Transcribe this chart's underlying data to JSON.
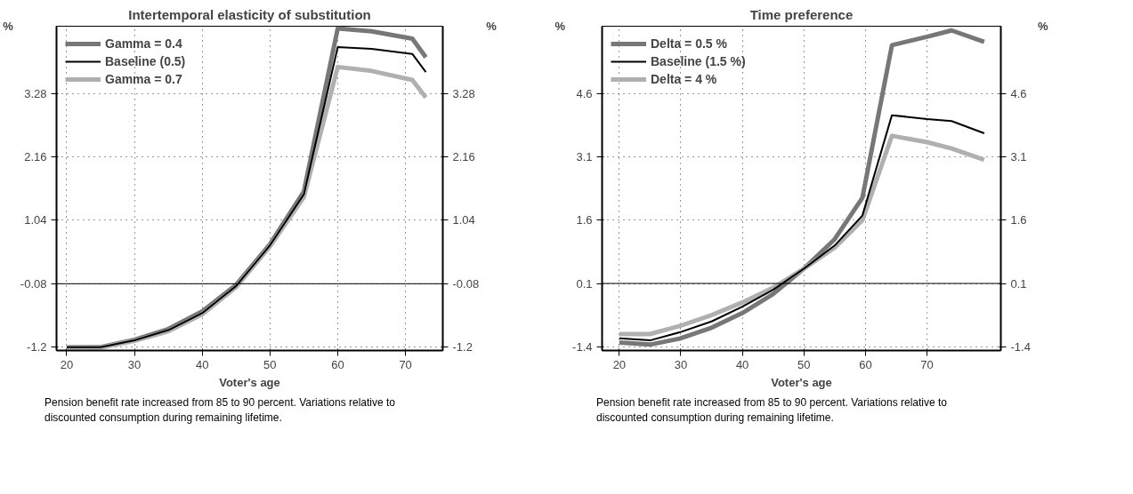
{
  "chart_data": [
    {
      "type": "line",
      "title": "Intertemporal elasticity of substitution",
      "xlabel": "Voter's age",
      "ylabel": "%",
      "y2label": "%",
      "x": [
        20,
        25,
        30,
        35,
        40,
        45,
        50,
        55,
        60,
        65,
        71,
        73
      ],
      "series": [
        {
          "name": "Gamma = 0.4",
          "color": "#777777",
          "values": [
            -1.2,
            -1.2,
            -1.07,
            -0.88,
            -0.57,
            -0.1,
            0.62,
            1.55,
            4.43,
            4.38,
            4.25,
            3.92
          ]
        },
        {
          "name": "Baseline (0.5)",
          "color": "#000000",
          "values": [
            -1.2,
            -1.2,
            -1.08,
            -0.9,
            -0.6,
            -0.12,
            0.6,
            1.5,
            4.1,
            4.07,
            3.98,
            3.66
          ]
        },
        {
          "name": "Gamma = 0.7",
          "color": "#b0b0b0",
          "values": [
            -1.2,
            -1.21,
            -1.09,
            -0.92,
            -0.62,
            -0.14,
            0.58,
            1.45,
            3.75,
            3.68,
            3.52,
            3.21
          ]
        }
      ],
      "xlim": [
        18.5,
        75.5
      ],
      "ylim": [
        -1.26,
        4.47
      ],
      "xticks": [
        20,
        30,
        40,
        50,
        60,
        70
      ],
      "yticks": [
        -1.2,
        -0.08,
        1.04,
        2.16,
        3.28
      ],
      "y2lim": [
        -1.26,
        4.47
      ],
      "y2ticks": [
        -1.2,
        -0.08,
        1.04,
        2.16,
        3.28
      ],
      "ref_lines": [
        {
          "axis": "y",
          "value": -0.08,
          "color": "#000000"
        }
      ],
      "grid": true,
      "legend": "top left",
      "line_style": "solid",
      "marker": "none",
      "annotations": [
        "Pension benefit rate increased from 85 to 90 percent. Variations relative to discounted consumption during remaining lifetime."
      ]
    },
    {
      "type": "line",
      "title": "Time preference",
      "xlabel": "Voter's age",
      "ylabel": "%",
      "y2label": "%",
      "x": [
        20,
        25,
        30,
        35,
        40,
        45,
        50,
        55,
        59.5,
        64.3,
        70,
        74,
        79.3
      ],
      "series": [
        {
          "name": "Delta = 0.5 %",
          "color": "#777777",
          "values": [
            -1.3,
            -1.35,
            -1.2,
            -0.95,
            -0.6,
            -0.15,
            0.45,
            1.15,
            2.13,
            5.75,
            5.95,
            6.1,
            5.83
          ]
        },
        {
          "name": "Baseline (1.5 %)",
          "color": "#000000",
          "values": [
            -1.2,
            -1.25,
            -1.05,
            -0.8,
            -0.45,
            -0.05,
            0.45,
            1.0,
            1.71,
            4.09,
            4.0,
            3.95,
            3.66
          ]
        },
        {
          "name": "Delta = 4 %",
          "color": "#b0b0b0",
          "values": [
            -1.1,
            -1.1,
            -0.9,
            -0.65,
            -0.35,
            0.0,
            0.45,
            0.95,
            1.6,
            3.6,
            3.45,
            3.3,
            3.03
          ]
        }
      ],
      "xlim": [
        17.2,
        82
      ],
      "ylim": [
        -1.49,
        6.2
      ],
      "xticks": [
        20,
        30,
        40,
        50,
        60,
        70
      ],
      "yticks": [
        -1.4,
        0.1,
        1.6,
        3.1,
        4.6
      ],
      "y2lim": [
        -1.49,
        6.2
      ],
      "y2ticks": [
        -1.4,
        0.1,
        1.6,
        3.1,
        4.6
      ],
      "ref_lines": [
        {
          "axis": "y",
          "value": 0.1,
          "color": "#000000"
        }
      ],
      "grid": true,
      "legend": "top left",
      "line_style": "solid",
      "marker": "none",
      "annotations": [
        "Pension benefit rate increased from 85 to 90 percent. Variations relative to discounted consumption during remaining lifetime."
      ]
    }
  ]
}
